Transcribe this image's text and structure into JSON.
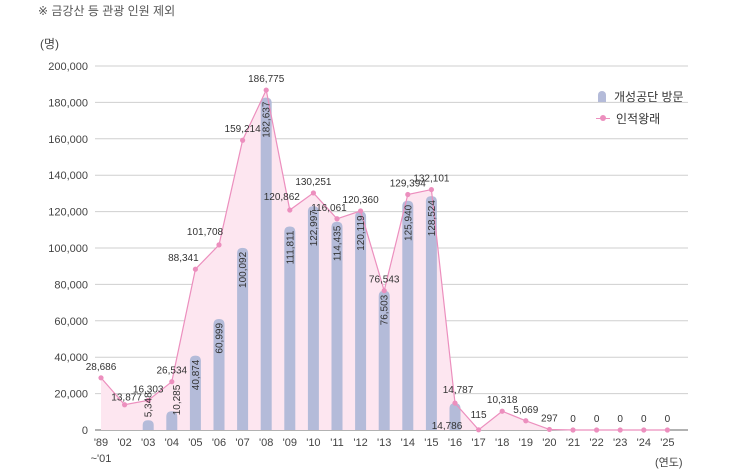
{
  "note": "※ 금강산 등 관광 인원 제외",
  "y_unit": "(명)",
  "x_unit": "(연도)",
  "chart_data": {
    "type": "bar",
    "categories": [
      "'89 ~'01",
      "'02",
      "'03",
      "'04",
      "'05",
      "'06",
      "'07",
      "'08",
      "'09",
      "'10",
      "'11",
      "'12",
      "'13",
      "'14",
      "'15",
      "'16",
      "'17",
      "'18",
      "'19",
      "'20",
      "'21",
      "'22",
      "'23",
      "'24",
      "'25"
    ],
    "ylim": [
      0,
      200000
    ],
    "yticks": [
      0,
      20000,
      40000,
      60000,
      80000,
      100000,
      120000,
      140000,
      160000,
      180000,
      200000
    ],
    "ytick_labels": [
      "0",
      "20,000",
      "40,000",
      "60,000",
      "80,000",
      "100,000",
      "120,000",
      "140,000",
      "160,000",
      "180,000",
      "200,000"
    ],
    "grid": "horizontal",
    "legend": "top-right",
    "series": [
      {
        "name": "개성공단 방문",
        "kind": "bar",
        "color": "#b4bbd9",
        "values": [
          null,
          null,
          5348,
          10285,
          40874,
          60999,
          100092,
          182637,
          111811,
          122997,
          114435,
          120119,
          76503,
          125940,
          128524,
          14786,
          null,
          null,
          null,
          null,
          null,
          null,
          null,
          null,
          null
        ],
        "labels": [
          null,
          null,
          "5,348",
          "10,285",
          "40,874",
          "60,999",
          "100,092",
          "182,637",
          "111,811",
          "122,997",
          "114,435",
          "120,119",
          "76,503",
          "125,940",
          "128,524",
          "14,786",
          null,
          null,
          null,
          null,
          null,
          null,
          null,
          null,
          null
        ]
      },
      {
        "name": "인적왕래",
        "kind": "line",
        "color": "#ec8fbe",
        "fill": "#fde6f0",
        "values": [
          28686,
          13877,
          16303,
          26534,
          88341,
          101708,
          159214,
          186775,
          120862,
          130251,
          116061,
          120360,
          76543,
          129394,
          132101,
          14787,
          115,
          10318,
          5069,
          297,
          0,
          0,
          0,
          0,
          0
        ],
        "labels": [
          "28,686",
          "13,877",
          "16,303",
          "26,534",
          "88,341",
          "101,708",
          "159,214",
          "186,775",
          "120,862",
          "130,251",
          "116,061",
          "120,360",
          "76,543",
          "129,394",
          "132,101",
          "14,787",
          "115",
          "10,318",
          "5,069",
          "297",
          "0",
          "0",
          "0",
          "0",
          "0"
        ]
      }
    ]
  }
}
